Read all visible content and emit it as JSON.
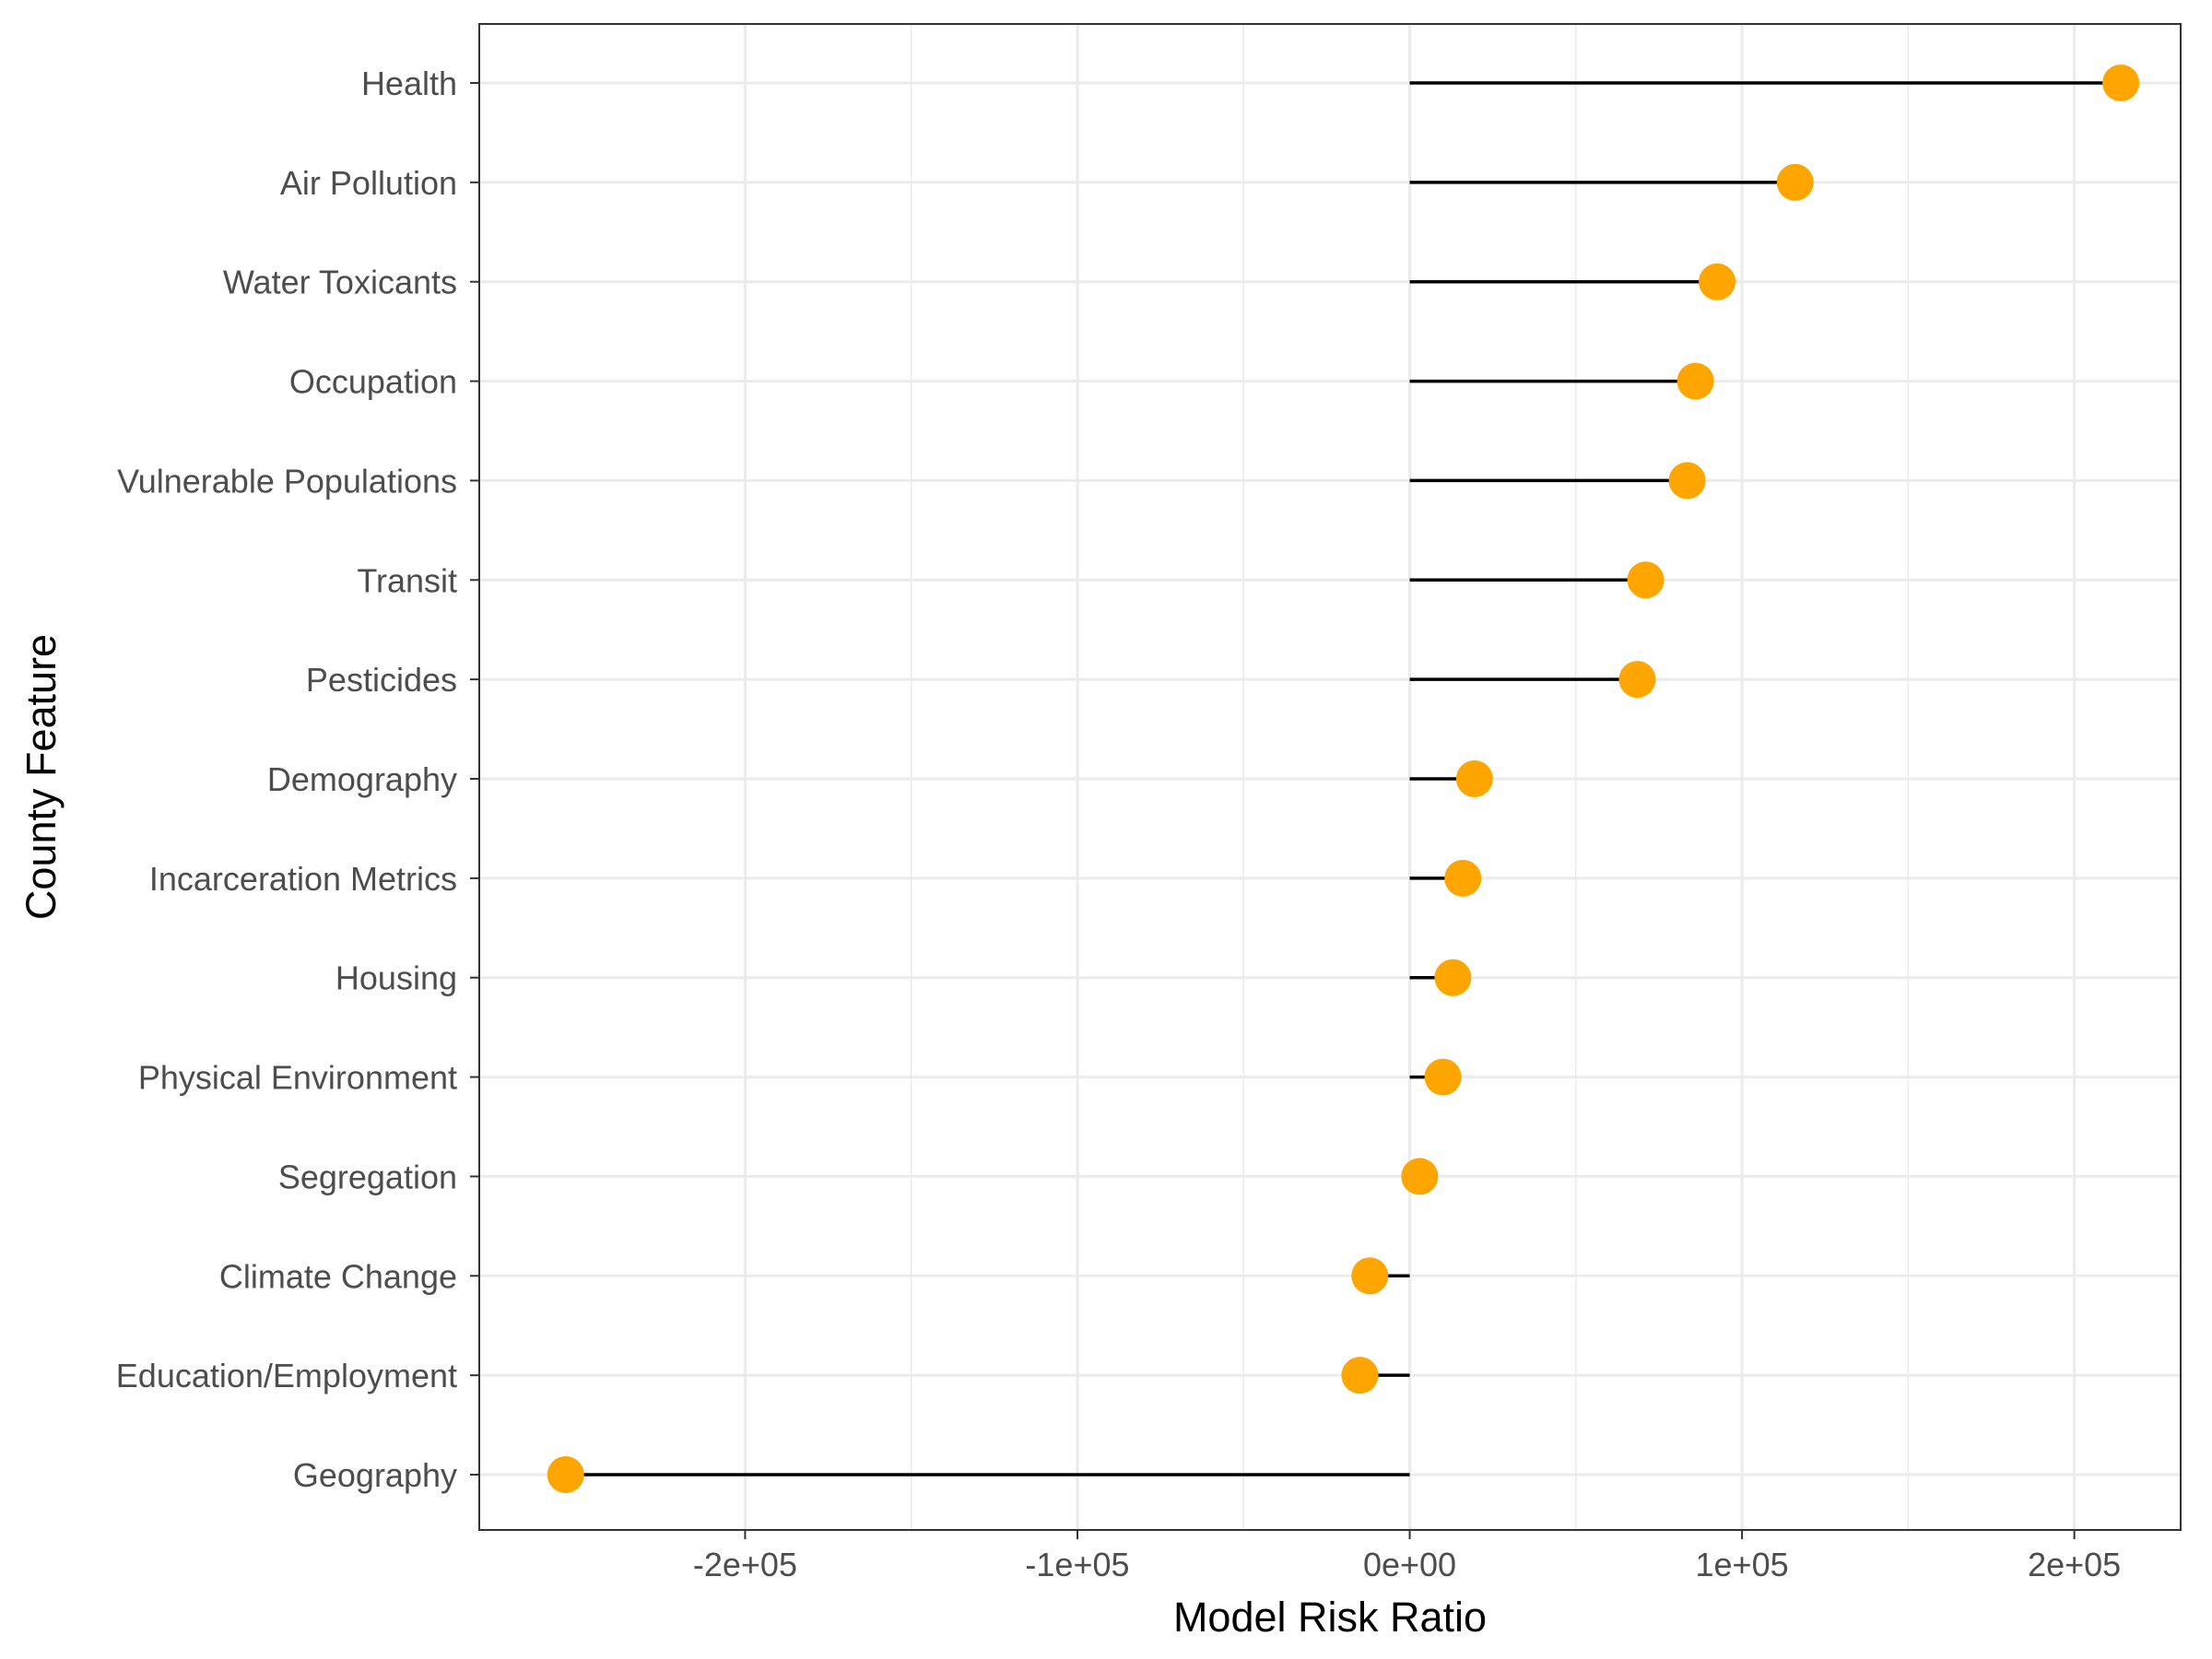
{
  "chart_data": {
    "type": "lollipop",
    "xlabel": "Model Risk Ratio",
    "ylabel": "County Feature",
    "xlim": [
      -280000,
      232000
    ],
    "x_ticks": [
      {
        "value": -200000,
        "label": "-2e+05"
      },
      {
        "value": -100000,
        "label": "-1e+05"
      },
      {
        "value": 0,
        "label": "0e+00"
      },
      {
        "value": 100000,
        "label": "1e+05"
      },
      {
        "value": 200000,
        "label": "2e+05"
      }
    ],
    "x_minor_ticks": [
      -150000,
      -50000,
      50000,
      150000
    ],
    "baseline": 0,
    "grid": true,
    "categories": [
      "Health",
      "Air Pollution",
      "Water Toxicants",
      "Occupation",
      "Vulnerable Populations",
      "Transit",
      "Pesticides",
      "Demography",
      "Incarceration Metrics",
      "Housing",
      "Physical Environment",
      "Segregation",
      "Climate Change",
      "Education/Employment",
      "Geography"
    ],
    "values": [
      214000,
      116000,
      92500,
      86000,
      83500,
      71000,
      68500,
      19500,
      16000,
      13000,
      10000,
      3000,
      -12000,
      -15000,
      -254000
    ],
    "colors": {
      "point": "#FFA500",
      "stem": "#000000",
      "grid": "#ebebeb",
      "panel_border": "#333333",
      "tick_text": "#4d4d4d"
    }
  }
}
